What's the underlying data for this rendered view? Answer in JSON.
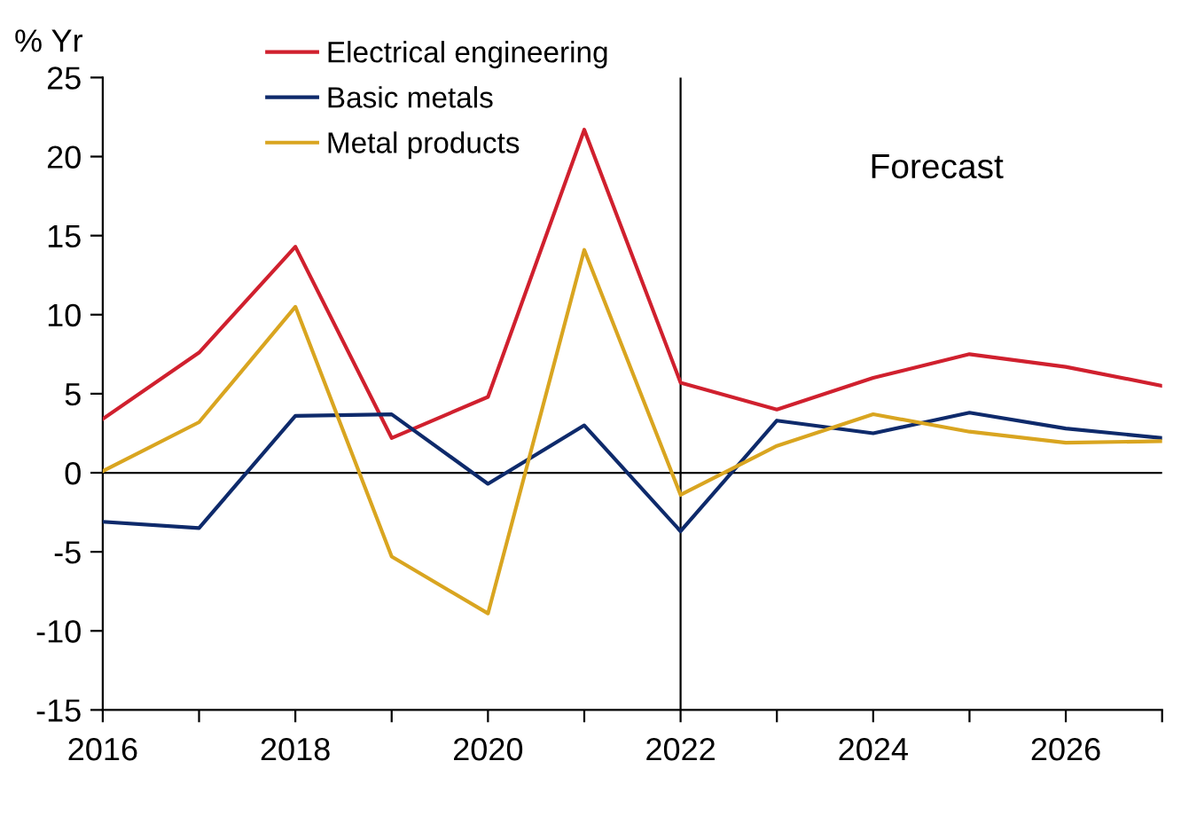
{
  "chart_data": {
    "type": "line",
    "ylabel": "% Yr",
    "x": [
      2016,
      2017,
      2018,
      2019,
      2020,
      2021,
      2022,
      2023,
      2024,
      2025,
      2026,
      2027
    ],
    "series": [
      {
        "name": "Electrical engineering",
        "color": "#d0202e",
        "values": [
          3.4,
          7.6,
          14.3,
          2.2,
          4.8,
          21.7,
          5.7,
          4.0,
          6.0,
          7.5,
          6.7,
          5.5
        ]
      },
      {
        "name": "Basic metals",
        "color": "#0e2a6b",
        "values": [
          -3.1,
          -3.5,
          3.6,
          3.7,
          -0.7,
          3.0,
          -3.7,
          3.3,
          2.5,
          3.8,
          2.8,
          2.2
        ]
      },
      {
        "name": "Metal products",
        "color": "#d9a520",
        "values": [
          0.1,
          3.2,
          10.5,
          -5.3,
          -8.9,
          14.1,
          -1.4,
          1.7,
          3.7,
          2.6,
          1.9,
          2.0
        ]
      }
    ],
    "xlim": [
      2016,
      2027
    ],
    "xticks": [
      2016,
      {
        "value": 2017,
        "label": null
      },
      2018,
      {
        "value": 2019,
        "label": null
      },
      2020,
      {
        "value": 2021,
        "label": null
      },
      2022,
      {
        "value": 2023,
        "label": null
      },
      2024,
      {
        "value": 2025,
        "label": null
      },
      2026,
      {
        "value": 2027,
        "label": null
      }
    ],
    "ylim": [
      -15,
      25
    ],
    "yticks": [
      -15,
      -10,
      -5,
      0,
      5,
      10,
      15,
      20,
      25
    ],
    "ref_lines": [
      {
        "axis": "x",
        "value": 2022,
        "label": null,
        "color": "#000000"
      },
      {
        "axis": "y",
        "value": 0,
        "label": null,
        "color": "#000000"
      }
    ],
    "annotations": [
      "Forecast"
    ],
    "grid": false,
    "legend": "top left",
    "marker": "none",
    "line_style": "solid"
  }
}
